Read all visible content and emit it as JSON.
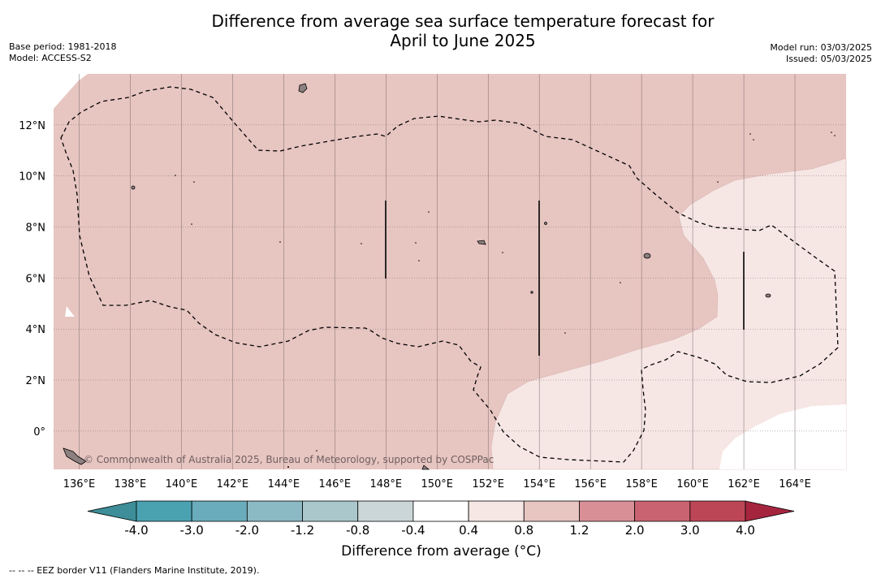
{
  "header": {
    "title_line1": "Difference from average sea surface temperature forecast for",
    "title_line2": "April to June 2025",
    "base_period": "Base period: 1981-2018",
    "model": "Model: ACCESS-S2",
    "model_run": "Model run: 03/03/2025",
    "issued": "Issued: 05/03/2025"
  },
  "map": {
    "lon_labels": [
      "136°E",
      "138°E",
      "140°E",
      "142°E",
      "144°E",
      "146°E",
      "148°E",
      "150°E",
      "152°E",
      "154°E",
      "156°E",
      "158°E",
      "160°E",
      "162°E",
      "164°E"
    ],
    "lat_labels": [
      "12°N",
      "10°N",
      "8°N",
      "6°N",
      "4°N",
      "2°N",
      "0°"
    ],
    "credit": "© Commonwealth of Australia 2025, Bureau of Meteorology, supported by COSPPac",
    "lon_range": [
      135,
      166
    ],
    "lat_range": [
      -1.5,
      14
    ],
    "anomaly_levels": {
      "background": "0.8 to 1.2",
      "east_region": "0.4 to 0.8",
      "southeast_corner": "-0.4 to 0.4"
    }
  },
  "colorbar": {
    "labels": [
      "-4.0",
      "-3.0",
      "-2.0",
      "-1.2",
      "-0.8",
      "-0.4",
      "0.4",
      "0.8",
      "1.2",
      "2.0",
      "3.0",
      "4.0"
    ],
    "colors": [
      "#3d8e99",
      "#4aa2b1",
      "#6aacbb",
      "#8bb9c4",
      "#aac7cb",
      "#cbd6d8",
      "#ffffff",
      "#f6e6e4",
      "#e7c5c1",
      "#d89096",
      "#c96371",
      "#bc4656",
      "#a5253f"
    ],
    "title": "Difference from average (°C)"
  },
  "footnote": "--  --  -- EEZ border V11 (Flanders Marine Institute, 2019)."
}
